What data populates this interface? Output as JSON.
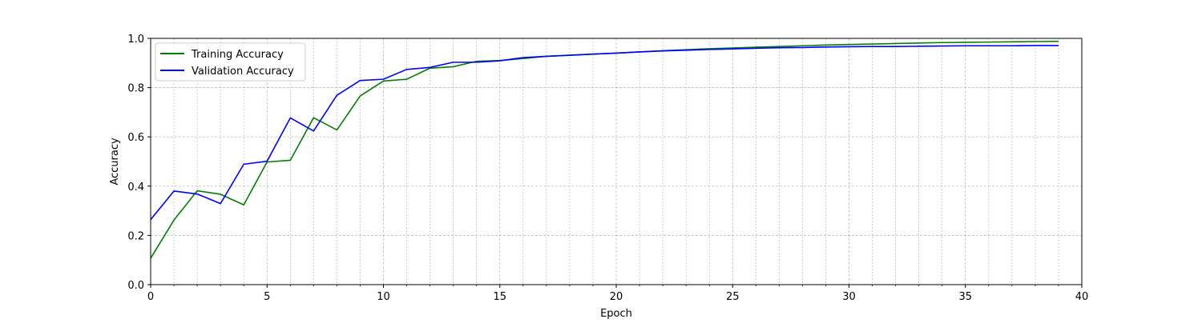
{
  "chart_data": {
    "type": "line",
    "title": "",
    "xlabel": "Epoch",
    "ylabel": "Accuracy",
    "xlim": [
      0,
      40
    ],
    "ylim": [
      0.0,
      1.0
    ],
    "x_ticks": [
      0,
      5,
      10,
      15,
      20,
      25,
      30,
      35,
      40
    ],
    "x_tick_labels": [
      "0",
      "5",
      "10",
      "15",
      "20",
      "25",
      "30",
      "35",
      "40"
    ],
    "y_ticks": [
      0.0,
      0.2,
      0.4,
      0.6,
      0.8,
      1.0
    ],
    "y_tick_labels": [
      "0.0",
      "0.2",
      "0.4",
      "0.6",
      "0.8",
      "1.0"
    ],
    "x_minor_step": 1,
    "grid": true,
    "legend_position": "upper-left",
    "x": [
      0,
      1,
      2,
      3,
      4,
      5,
      6,
      7,
      8,
      9,
      10,
      11,
      12,
      13,
      14,
      15,
      16,
      17,
      18,
      19,
      20,
      21,
      22,
      23,
      24,
      25,
      26,
      27,
      28,
      29,
      30,
      31,
      32,
      33,
      34,
      35,
      36,
      37,
      38,
      39
    ],
    "series": [
      {
        "name": "Training Accuracy",
        "color": "#008000",
        "values": [
          0.107,
          0.262,
          0.381,
          0.367,
          0.324,
          0.498,
          0.505,
          0.678,
          0.628,
          0.766,
          0.827,
          0.834,
          0.879,
          0.885,
          0.907,
          0.91,
          0.918,
          0.927,
          0.932,
          0.936,
          0.94,
          0.945,
          0.95,
          0.954,
          0.958,
          0.961,
          0.964,
          0.967,
          0.97,
          0.973,
          0.975,
          0.977,
          0.979,
          0.981,
          0.983,
          0.984,
          0.985,
          0.986,
          0.987,
          0.988
        ]
      },
      {
        "name": "Validation Accuracy",
        "color": "#0000ff",
        "values": [
          0.264,
          0.38,
          0.368,
          0.329,
          0.489,
          0.501,
          0.677,
          0.624,
          0.769,
          0.829,
          0.834,
          0.874,
          0.882,
          0.903,
          0.903,
          0.909,
          0.922,
          0.927,
          0.931,
          0.936,
          0.94,
          0.945,
          0.949,
          0.952,
          0.955,
          0.957,
          0.96,
          0.962,
          0.963,
          0.965,
          0.966,
          0.967,
          0.967,
          0.968,
          0.969,
          0.97,
          0.97,
          0.97,
          0.971,
          0.971
        ]
      }
    ]
  }
}
